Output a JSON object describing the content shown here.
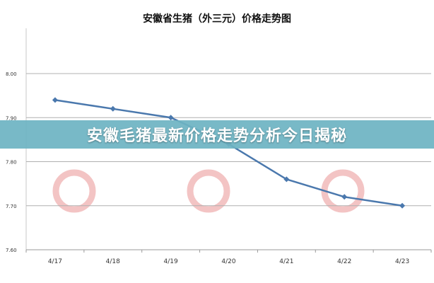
{
  "banner": {
    "headline": "安徽毛猪最新价格走势分析今日揭秘"
  },
  "chart_data": {
    "type": "line",
    "title": "安徽省生猪（外三元）价格走势图",
    "xlabel": "",
    "ylabel": "",
    "categories": [
      "4/17",
      "4/18",
      "4/19",
      "4/20",
      "4/21",
      "4/22",
      "4/23"
    ],
    "series": [
      {
        "values": [
          7.94,
          7.92,
          7.9,
          7.84,
          7.76,
          7.72,
          7.7
        ]
      }
    ],
    "ylim": [
      7.6,
      8.0
    ],
    "yticks": [
      "7.60",
      "7.70",
      "7.80",
      "7.90",
      "8.00"
    ],
    "grid": true,
    "legend": "none",
    "colors": {
      "line": "#4a78ad",
      "grid": "#b0b0b0",
      "banner": "#6eb4c3"
    }
  }
}
